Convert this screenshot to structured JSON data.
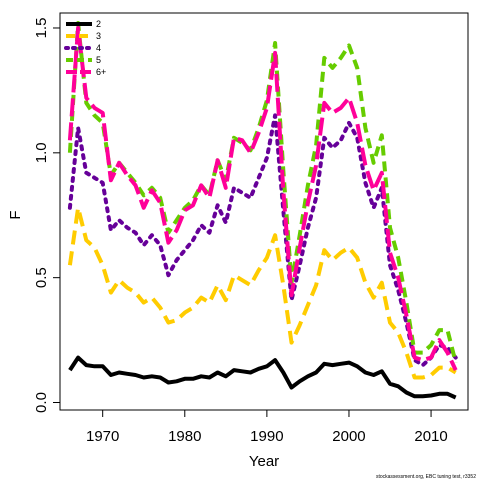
{
  "chart_data": {
    "type": "line",
    "title": "",
    "xlabel": "Year",
    "ylabel": "F",
    "xlim": [
      1964.8,
      2014.5
    ],
    "ylim": [
      -0.03,
      1.56
    ],
    "x_ticks": [
      1970,
      1980,
      1990,
      2000,
      2010
    ],
    "y_ticks": [
      0.0,
      0.5,
      1.0,
      1.5
    ],
    "x_tick_labels": [
      "1970",
      "1980",
      "1990",
      "2000",
      "2010"
    ],
    "y_tick_labels": [
      "0.0",
      "0.5",
      "1.0",
      "1.5"
    ],
    "legend_position": "top-left",
    "credit": "stockassessment.org, EBC tuning test, r3352",
    "x": [
      1966,
      1967,
      1968,
      1969,
      1970,
      1971,
      1972,
      1973,
      1974,
      1975,
      1976,
      1977,
      1978,
      1979,
      1980,
      1981,
      1982,
      1983,
      1984,
      1985,
      1986,
      1987,
      1988,
      1989,
      1990,
      1991,
      1992,
      1993,
      1994,
      1995,
      1996,
      1997,
      1998,
      1999,
      2000,
      2001,
      2002,
      2003,
      2004,
      2005,
      2006,
      2007,
      2008,
      2009,
      2010,
      2011,
      2012,
      2013
    ],
    "series": [
      {
        "name": "2",
        "color": "#000000",
        "dash": "solid",
        "values": [
          0.13,
          0.18,
          0.15,
          0.145,
          0.145,
          0.11,
          0.12,
          0.115,
          0.11,
          0.1,
          0.105,
          0.1,
          0.08,
          0.085,
          0.095,
          0.095,
          0.105,
          0.1,
          0.12,
          0.105,
          0.13,
          0.125,
          0.12,
          0.135,
          0.145,
          0.17,
          0.12,
          0.06,
          0.085,
          0.105,
          0.12,
          0.155,
          0.15,
          0.155,
          0.16,
          0.145,
          0.12,
          0.11,
          0.125,
          0.075,
          0.065,
          0.04,
          0.025,
          0.025,
          0.028,
          0.035,
          0.035,
          0.02
        ]
      },
      {
        "name": "3",
        "color": "#FFCC00",
        "dash": "long",
        "values": [
          0.55,
          0.78,
          0.65,
          0.62,
          0.55,
          0.44,
          0.49,
          0.46,
          0.44,
          0.4,
          0.42,
          0.38,
          0.32,
          0.33,
          0.36,
          0.38,
          0.42,
          0.4,
          0.47,
          0.41,
          0.51,
          0.49,
          0.47,
          0.53,
          0.58,
          0.67,
          0.47,
          0.24,
          0.31,
          0.39,
          0.47,
          0.61,
          0.57,
          0.6,
          0.62,
          0.58,
          0.48,
          0.42,
          0.48,
          0.32,
          0.28,
          0.2,
          0.1,
          0.1,
          0.11,
          0.14,
          0.14,
          0.12
        ]
      },
      {
        "name": "4",
        "color": "#660099",
        "dash": "dotted",
        "values": [
          0.78,
          1.1,
          0.92,
          0.9,
          0.88,
          0.69,
          0.73,
          0.7,
          0.68,
          0.63,
          0.67,
          0.63,
          0.51,
          0.57,
          0.61,
          0.65,
          0.71,
          0.68,
          0.79,
          0.72,
          0.86,
          0.84,
          0.82,
          0.9,
          0.98,
          1.15,
          0.77,
          0.41,
          0.55,
          0.7,
          0.82,
          1.06,
          1.02,
          1.05,
          1.12,
          1.06,
          0.88,
          0.78,
          0.86,
          0.55,
          0.45,
          0.32,
          0.17,
          0.15,
          0.18,
          0.23,
          0.22,
          0.18
        ]
      },
      {
        "name": "5",
        "color": "#66CC00",
        "dash": "dashed",
        "values": [
          1.0,
          1.52,
          1.2,
          1.15,
          1.12,
          0.91,
          0.96,
          0.92,
          0.88,
          0.83,
          0.86,
          0.82,
          0.68,
          0.73,
          0.78,
          0.81,
          0.87,
          0.83,
          0.97,
          0.89,
          1.06,
          1.04,
          1.01,
          1.1,
          1.21,
          1.44,
          0.93,
          0.48,
          0.67,
          0.87,
          1.03,
          1.38,
          1.34,
          1.38,
          1.43,
          1.34,
          1.1,
          0.96,
          1.07,
          0.7,
          0.58,
          0.4,
          0.2,
          0.2,
          0.23,
          0.29,
          0.29,
          0.16
        ]
      },
      {
        "name": "6+",
        "color": "#FF0099",
        "dash": "longdash",
        "values": [
          1.05,
          1.5,
          1.22,
          1.18,
          1.16,
          0.89,
          0.96,
          0.91,
          0.87,
          0.78,
          0.85,
          0.8,
          0.64,
          0.69,
          0.77,
          0.79,
          0.87,
          0.82,
          0.97,
          0.86,
          1.06,
          1.05,
          1.0,
          1.08,
          1.18,
          1.4,
          0.85,
          0.43,
          0.62,
          0.8,
          0.95,
          1.2,
          1.16,
          1.18,
          1.22,
          1.12,
          0.95,
          0.85,
          0.92,
          0.6,
          0.5,
          0.35,
          0.18,
          0.17,
          0.18,
          0.25,
          0.2,
          0.13
        ]
      }
    ]
  }
}
